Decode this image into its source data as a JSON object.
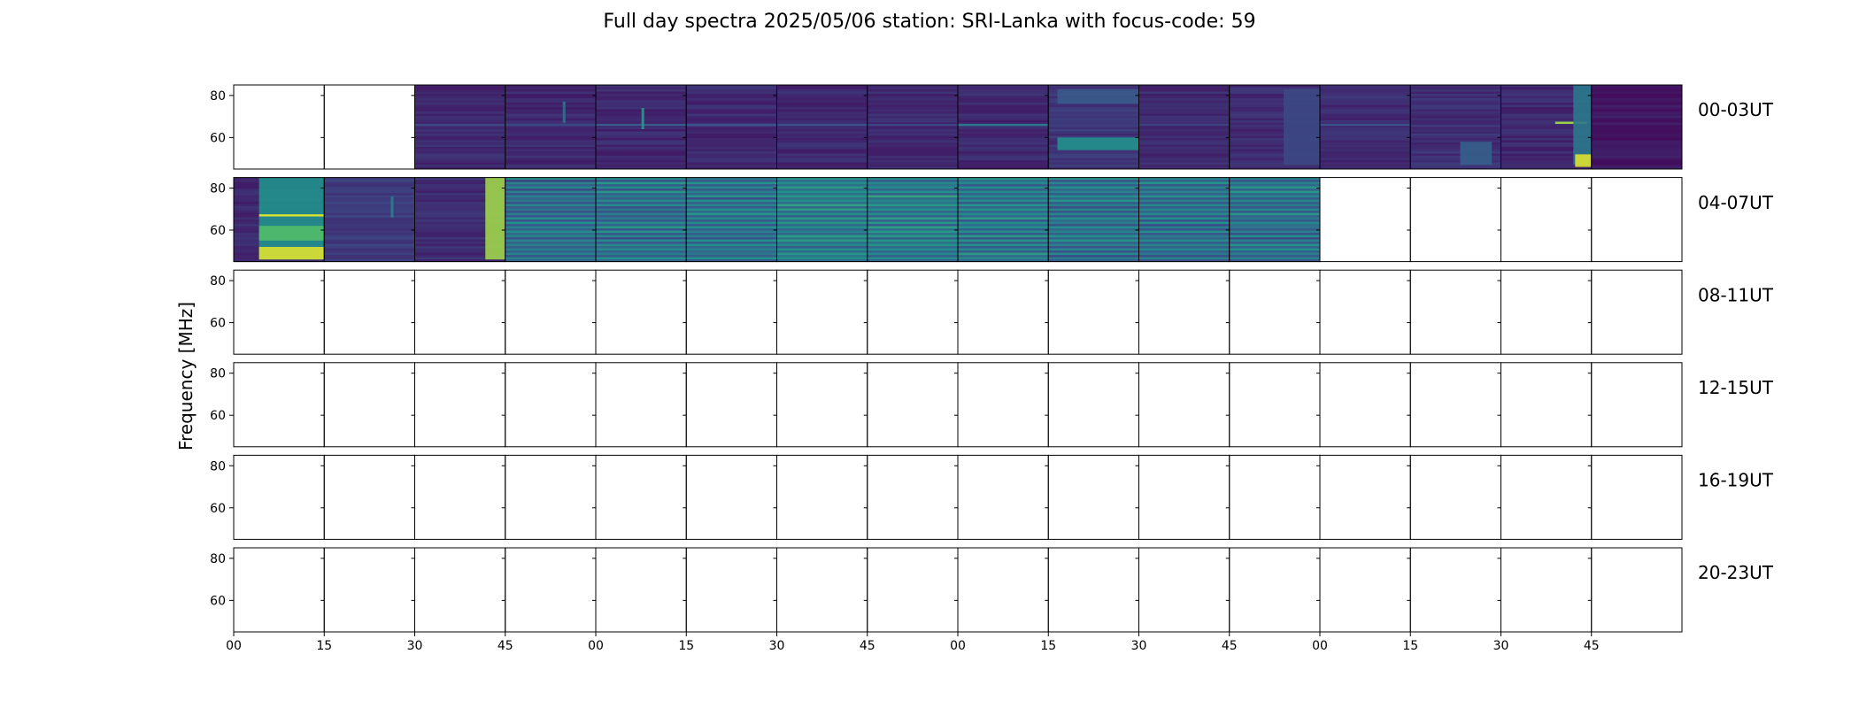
{
  "title": "Full day spectra 2025/05/06 station: SRI-Lanka with focus-code: 59",
  "chart_data": {
    "type": "heatmap",
    "title": "Full day spectra 2025/05/06 station: SRI-Lanka with focus-code: 59",
    "ylabel": "Frequency [MHz]",
    "xlabel": "",
    "ylim": [
      45,
      85
    ],
    "ytick_values": [
      60,
      80
    ],
    "xtick_labels": [
      "00",
      "15",
      "30",
      "45",
      "00",
      "15",
      "30",
      "45",
      "00",
      "15",
      "30",
      "45",
      "00",
      "15",
      "30",
      "45"
    ],
    "colormap": [
      "#440154",
      "#3b528b",
      "#21918c",
      "#5ec962",
      "#fde725"
    ],
    "rows": [
      {
        "label": "00-03UT",
        "panels": [
          {
            "data": false
          },
          {
            "data": false
          },
          {
            "data": true,
            "intensity": 0.12,
            "features": [
              {
                "type": "hline",
                "f": 66,
                "i": 0.22
              }
            ]
          },
          {
            "data": true,
            "intensity": 0.12,
            "features": [
              {
                "type": "hline",
                "f": 66,
                "i": 0.22
              },
              {
                "type": "blip",
                "t": 0.65,
                "f": 72,
                "i": 0.35
              }
            ]
          },
          {
            "data": true,
            "intensity": 0.12,
            "features": [
              {
                "type": "hline",
                "f": 66,
                "i": 0.3
              },
              {
                "type": "blip",
                "t": 0.52,
                "f": 69,
                "i": 0.5
              }
            ]
          },
          {
            "data": true,
            "intensity": 0.12,
            "features": [
              {
                "type": "hline",
                "f": 66,
                "i": 0.25
              }
            ]
          },
          {
            "data": true,
            "intensity": 0.12,
            "features": [
              {
                "type": "hline",
                "f": 66,
                "i": 0.25
              }
            ]
          },
          {
            "data": true,
            "intensity": 0.12,
            "features": [
              {
                "type": "hline",
                "f": 66,
                "i": 0.22
              }
            ]
          },
          {
            "data": true,
            "intensity": 0.12,
            "features": [
              {
                "type": "hline",
                "f": 66,
                "i": 0.4
              }
            ]
          },
          {
            "data": true,
            "intensity": 0.16,
            "features": [
              {
                "type": "band",
                "f0": 54,
                "f1": 60,
                "t0": 0.1,
                "t1": 1.0,
                "i": 0.5
              },
              {
                "type": "band",
                "f0": 76,
                "f1": 83,
                "t0": 0.1,
                "t1": 1.0,
                "i": 0.28
              }
            ]
          },
          {
            "data": true,
            "intensity": 0.13,
            "features": [
              {
                "type": "hline",
                "f": 66,
                "i": 0.2
              }
            ]
          },
          {
            "data": true,
            "intensity": 0.13,
            "features": [
              {
                "type": "band",
                "f0": 47,
                "f1": 83,
                "t0": 0.6,
                "t1": 1.0,
                "i": 0.22
              }
            ]
          },
          {
            "data": true,
            "intensity": 0.13,
            "features": [
              {
                "type": "hline",
                "f": 66,
                "i": 0.25
              }
            ]
          },
          {
            "data": true,
            "intensity": 0.14,
            "features": [
              {
                "type": "band",
                "f0": 47,
                "f1": 58,
                "t0": 0.55,
                "t1": 0.9,
                "i": 0.3
              }
            ]
          },
          {
            "data": true,
            "intensity": 0.12,
            "features": [
              {
                "type": "hline",
                "f": 67,
                "i": 0.85,
                "t0": 0.6,
                "t1": 0.95
              },
              {
                "type": "band",
                "f0": 47,
                "f1": 85,
                "t0": 0.8,
                "t1": 1.0,
                "i": 0.4
              },
              {
                "type": "band",
                "f0": 46,
                "f1": 52,
                "t0": 0.82,
                "t1": 1.0,
                "i": 0.95
              }
            ]
          },
          {
            "data": true,
            "intensity": 0.07,
            "features": []
          }
        ]
      },
      {
        "label": "04-07UT",
        "panels": [
          {
            "data": true,
            "intensity": 0.12,
            "features": [
              {
                "type": "band",
                "f0": 46,
                "f1": 85,
                "t0": 0.28,
                "t1": 1.0,
                "i": 0.5
              },
              {
                "type": "band",
                "f0": 46,
                "f1": 52,
                "t0": 0.28,
                "t1": 1.0,
                "i": 0.95
              },
              {
                "type": "hline",
                "f": 67,
                "i": 0.95,
                "t0": 0.28,
                "t1": 1.0
              },
              {
                "type": "band",
                "f0": 55,
                "f1": 62,
                "t0": 0.28,
                "t1": 1.0,
                "i": 0.7
              }
            ]
          },
          {
            "data": true,
            "intensity": 0.18,
            "features": [
              {
                "type": "blip",
                "t": 0.75,
                "f": 71,
                "i": 0.4
              }
            ]
          },
          {
            "data": true,
            "intensity": 0.13,
            "features": [
              {
                "type": "band",
                "f0": 46,
                "f1": 85,
                "t0": 0.78,
                "t1": 1.0,
                "i": 0.85
              }
            ]
          },
          {
            "data": true,
            "intensity": 0.28,
            "stripes": true,
            "features": []
          },
          {
            "data": true,
            "intensity": 0.3,
            "stripes": true,
            "features": []
          },
          {
            "data": true,
            "intensity": 0.3,
            "stripes": true,
            "features": []
          },
          {
            "data": true,
            "intensity": 0.35,
            "stripes": true,
            "features": []
          },
          {
            "data": true,
            "intensity": 0.35,
            "stripes": true,
            "features": []
          },
          {
            "data": true,
            "intensity": 0.32,
            "stripes": true,
            "features": []
          },
          {
            "data": true,
            "intensity": 0.3,
            "stripes": true,
            "features": []
          },
          {
            "data": true,
            "intensity": 0.3,
            "stripes": true,
            "features": []
          },
          {
            "data": true,
            "intensity": 0.3,
            "stripes": true,
            "features": []
          },
          {
            "data": false
          },
          {
            "data": false
          },
          {
            "data": false
          },
          {
            "data": false
          }
        ]
      },
      {
        "label": "08-11UT",
        "panels": []
      },
      {
        "label": "12-15UT",
        "panels": []
      },
      {
        "label": "16-19UT",
        "panels": []
      },
      {
        "label": "20-23UT",
        "panels": []
      }
    ]
  }
}
